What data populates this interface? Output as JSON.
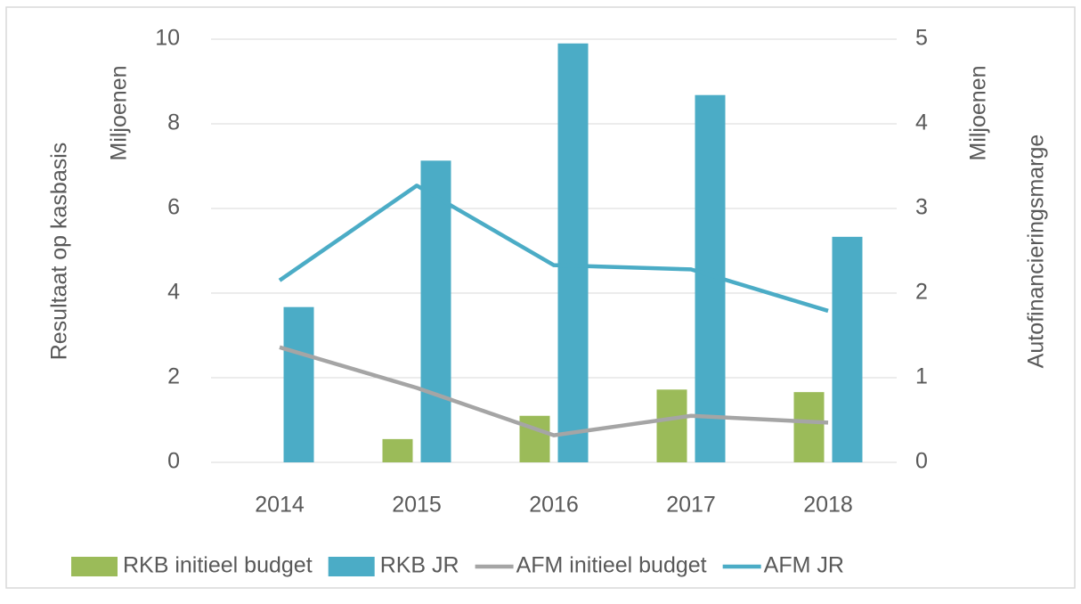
{
  "chart_data": {
    "type": "bar",
    "categories": [
      "2014",
      "2015",
      "2016",
      "2017",
      "2018"
    ],
    "ylabel": "Resultaat op kasbasis",
    "yunit": "Miljoenen",
    "y2label": "Autofinancieringsmarge",
    "y2unit": "Miljoenen",
    "ylim": [
      0,
      10
    ],
    "yticks": [
      0,
      2,
      4,
      6,
      8,
      10
    ],
    "y2lim": [
      0,
      5
    ],
    "y2ticks": [
      0,
      1,
      2,
      3,
      4,
      5
    ],
    "grid": true,
    "legend": "bottom",
    "series": [
      {
        "name": "RKB initieel budget",
        "type": "bar",
        "color": "#9bbb59",
        "values": [
          0,
          0.55,
          1.1,
          1.72,
          1.66
        ]
      },
      {
        "name": "RKB JR",
        "type": "bar",
        "color": "#4bacc6",
        "values": [
          3.67,
          7.13,
          9.9,
          8.68,
          5.33
        ]
      },
      {
        "name": "AFM initieel budget",
        "type": "line",
        "axis": "y2",
        "color": "#a5a5a5",
        "values": [
          1.36,
          0.88,
          0.32,
          0.55,
          0.47
        ]
      },
      {
        "name": "AFM JR",
        "type": "line",
        "axis": "y2",
        "color": "#4bacc6",
        "values": [
          2.15,
          3.27,
          2.33,
          2.28,
          1.79
        ]
      }
    ]
  }
}
